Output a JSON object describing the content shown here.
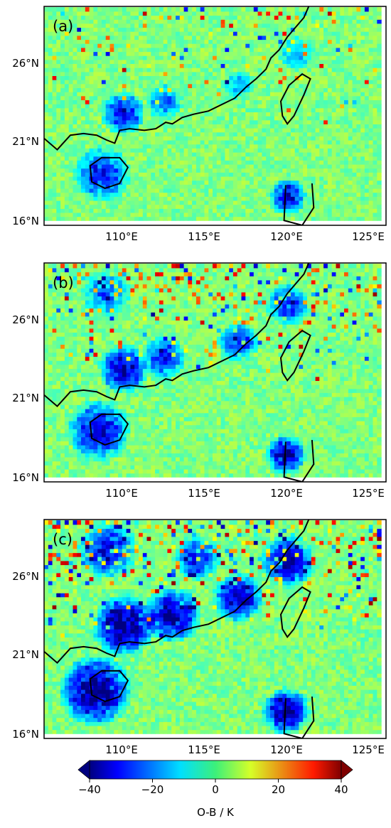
{
  "chart_data": [
    {
      "type": "heatmap",
      "panel_label": "(a)",
      "x_ticks": [
        110,
        115,
        120,
        125
      ],
      "x_tick_labels": [
        "110°E",
        "115°E",
        "120°E",
        "125°E"
      ],
      "y_ticks": [
        16,
        21,
        26
      ],
      "y_tick_labels": [
        "16°N",
        "21°N",
        "26°N"
      ],
      "xlim": [
        105.8,
        126.6
      ],
      "ylim": [
        15.9,
        29.5
      ],
      "intensity": 0.35,
      "cold_regions": [
        {
          "lon": 109.2,
          "lat": 19.0,
          "r": 1.8,
          "value": -30
        },
        {
          "lon": 110.5,
          "lat": 22.8,
          "r": 1.4,
          "value": -32
        },
        {
          "lon": 113.0,
          "lat": 23.5,
          "r": 1.2,
          "value": -22
        },
        {
          "lon": 120.5,
          "lat": 17.6,
          "r": 1.2,
          "value": -34
        },
        {
          "lon": 117.5,
          "lat": 24.5,
          "r": 1.0,
          "value": -18
        },
        {
          "lon": 121.0,
          "lat": 26.5,
          "r": 1.2,
          "value": -15
        }
      ]
    },
    {
      "type": "heatmap",
      "panel_label": "(b)",
      "x_ticks": [
        110,
        115,
        120,
        125
      ],
      "x_tick_labels": [
        "110°E",
        "115°E",
        "120°E",
        "125°E"
      ],
      "y_ticks": [
        16,
        21,
        26
      ],
      "y_tick_labels": [
        "16°N",
        "21°N",
        "26°N"
      ],
      "xlim": [
        105.8,
        126.6
      ],
      "ylim": [
        15.9,
        29.5
      ],
      "intensity": 0.7,
      "cold_regions": [
        {
          "lon": 109.0,
          "lat": 19.0,
          "r": 2.0,
          "value": -35
        },
        {
          "lon": 110.5,
          "lat": 22.8,
          "r": 1.6,
          "value": -36
        },
        {
          "lon": 113.0,
          "lat": 23.5,
          "r": 1.4,
          "value": -28
        },
        {
          "lon": 120.4,
          "lat": 17.5,
          "r": 1.3,
          "value": -38
        },
        {
          "lon": 117.5,
          "lat": 24.5,
          "r": 1.3,
          "value": -28
        },
        {
          "lon": 120.5,
          "lat": 26.8,
          "r": 1.4,
          "value": -30
        },
        {
          "lon": 109.5,
          "lat": 27.5,
          "r": 1.6,
          "value": -22
        }
      ]
    },
    {
      "type": "heatmap",
      "panel_label": "(c)",
      "x_ticks": [
        110,
        115,
        120,
        125
      ],
      "x_tick_labels": [
        "110°E",
        "115°E",
        "120°E",
        "125°E"
      ],
      "y_ticks": [
        16,
        21,
        26
      ],
      "y_tick_labels": [
        "16°N",
        "21°N",
        "26°N"
      ],
      "xlim": [
        105.8,
        126.6
      ],
      "ylim": [
        15.9,
        29.5
      ],
      "intensity": 1.0,
      "cold_regions": [
        {
          "lon": 108.8,
          "lat": 18.8,
          "r": 2.3,
          "value": -42
        },
        {
          "lon": 110.5,
          "lat": 22.8,
          "r": 2.0,
          "value": -42
        },
        {
          "lon": 113.5,
          "lat": 23.5,
          "r": 1.8,
          "value": -38
        },
        {
          "lon": 120.4,
          "lat": 17.5,
          "r": 1.5,
          "value": -42
        },
        {
          "lon": 117.5,
          "lat": 24.5,
          "r": 1.6,
          "value": -36
        },
        {
          "lon": 120.5,
          "lat": 26.8,
          "r": 1.7,
          "value": -38
        },
        {
          "lon": 109.5,
          "lat": 27.5,
          "r": 1.9,
          "value": -30
        },
        {
          "lon": 115.0,
          "lat": 27.0,
          "r": 1.5,
          "value": -28
        }
      ]
    }
  ],
  "colorbar": {
    "label": "O-B / K",
    "min": -40,
    "max": 40,
    "ticks": [
      -40,
      -20,
      0,
      20,
      40
    ],
    "tick_labels": [
      "−40",
      "−20",
      "0",
      "20",
      "40"
    ],
    "colormap": "jet",
    "extend": "both"
  },
  "colors": {
    "background_field": "#3cf07a",
    "coastline": "#000000"
  }
}
